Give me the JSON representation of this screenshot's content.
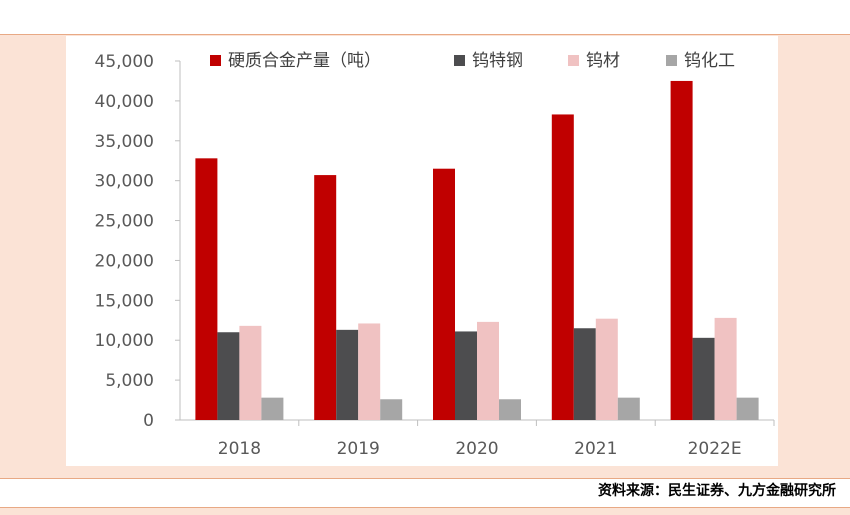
{
  "source": "资料来源：民生证券、九方金融研究所",
  "chart_data": {
    "type": "bar",
    "title": "",
    "xlabel": "",
    "ylabel": "",
    "categories": [
      "2018",
      "2019",
      "2020",
      "2021",
      "2022E"
    ],
    "series": [
      {
        "name": "硬质合金产量（吨）",
        "color": "#c00000",
        "values": [
          32800,
          30700,
          31500,
          38300,
          42500
        ]
      },
      {
        "name": "钨特钢",
        "color": "#4d4d4f",
        "values": [
          11000,
          11300,
          11100,
          11500,
          10300
        ]
      },
      {
        "name": "钨材",
        "color": "#f0c2c2",
        "values": [
          11800,
          12100,
          12300,
          12700,
          12800
        ]
      },
      {
        "name": "钨化工",
        "color": "#a6a6a6",
        "values": [
          2800,
          2600,
          2600,
          2800,
          2800
        ]
      }
    ],
    "ylim": [
      0,
      45000
    ],
    "yticks": [
      "0",
      "5,000",
      "10,000",
      "15,000",
      "20,000",
      "25,000",
      "30,000",
      "35,000",
      "40,000",
      "45,000"
    ],
    "legend_position": "top",
    "grid": false
  }
}
